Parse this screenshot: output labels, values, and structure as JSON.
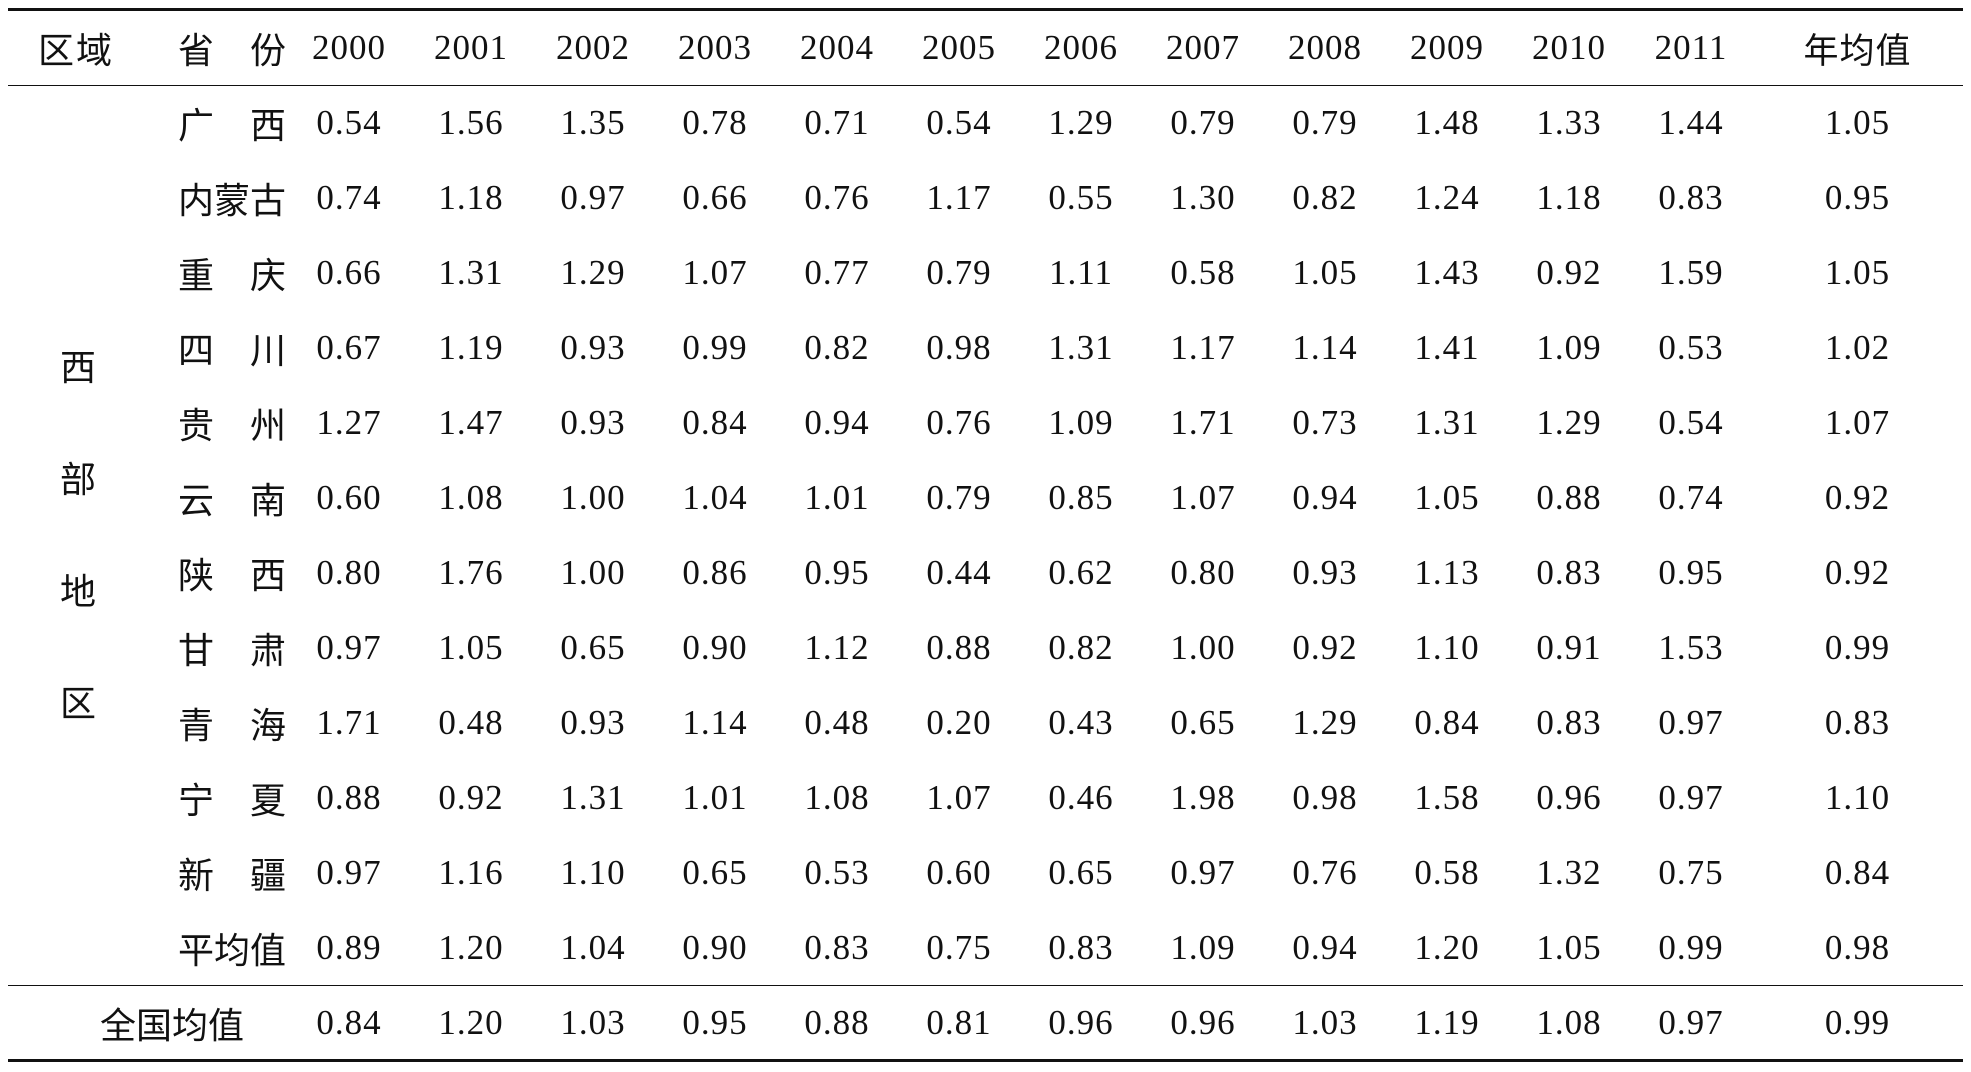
{
  "header": {
    "region": "区域",
    "province_a": "省",
    "province_b": "份",
    "years": [
      "2000",
      "2001",
      "2002",
      "2003",
      "2004",
      "2005",
      "2006",
      "2007",
      "2008",
      "2009",
      "2010",
      "2011"
    ],
    "annual_mean": "年均值"
  },
  "region_label": [
    "西",
    "部",
    "地",
    "区"
  ],
  "rows": [
    {
      "p1": "广",
      "p2": "西",
      "values": [
        "0.54",
        "1.56",
        "1.35",
        "0.78",
        "0.71",
        "0.54",
        "1.29",
        "0.79",
        "0.79",
        "1.48",
        "1.33",
        "1.44"
      ],
      "mean": "1.05"
    },
    {
      "p1": "内蒙古",
      "p2": "",
      "values": [
        "0.74",
        "1.18",
        "0.97",
        "0.66",
        "0.76",
        "1.17",
        "0.55",
        "1.30",
        "0.82",
        "1.24",
        "1.18",
        "0.83"
      ],
      "mean": "0.95"
    },
    {
      "p1": "重",
      "p2": "庆",
      "values": [
        "0.66",
        "1.31",
        "1.29",
        "1.07",
        "0.77",
        "0.79",
        "1.11",
        "0.58",
        "1.05",
        "1.43",
        "0.92",
        "1.59"
      ],
      "mean": "1.05"
    },
    {
      "p1": "四",
      "p2": "川",
      "values": [
        "0.67",
        "1.19",
        "0.93",
        "0.99",
        "0.82",
        "0.98",
        "1.31",
        "1.17",
        "1.14",
        "1.41",
        "1.09",
        "0.53"
      ],
      "mean": "1.02"
    },
    {
      "p1": "贵",
      "p2": "州",
      "values": [
        "1.27",
        "1.47",
        "0.93",
        "0.84",
        "0.94",
        "0.76",
        "1.09",
        "1.71",
        "0.73",
        "1.31",
        "1.29",
        "0.54"
      ],
      "mean": "1.07"
    },
    {
      "p1": "云",
      "p2": "南",
      "values": [
        "0.60",
        "1.08",
        "1.00",
        "1.04",
        "1.01",
        "0.79",
        "0.85",
        "1.07",
        "0.94",
        "1.05",
        "0.88",
        "0.74"
      ],
      "mean": "0.92"
    },
    {
      "p1": "陕",
      "p2": "西",
      "values": [
        "0.80",
        "1.76",
        "1.00",
        "0.86",
        "0.95",
        "0.44",
        "0.62",
        "0.80",
        "0.93",
        "1.13",
        "0.83",
        "0.95"
      ],
      "mean": "0.92"
    },
    {
      "p1": "甘",
      "p2": "肃",
      "values": [
        "0.97",
        "1.05",
        "0.65",
        "0.90",
        "1.12",
        "0.88",
        "0.82",
        "1.00",
        "0.92",
        "1.10",
        "0.91",
        "1.53"
      ],
      "mean": "0.99"
    },
    {
      "p1": "青",
      "p2": "海",
      "values": [
        "1.71",
        "0.48",
        "0.93",
        "1.14",
        "0.48",
        "0.20",
        "0.43",
        "0.65",
        "1.29",
        "0.84",
        "0.83",
        "0.97"
      ],
      "mean": "0.83"
    },
    {
      "p1": "宁",
      "p2": "夏",
      "values": [
        "0.88",
        "0.92",
        "1.31",
        "1.01",
        "1.08",
        "1.07",
        "0.46",
        "1.98",
        "0.98",
        "1.58",
        "0.96",
        "0.97"
      ],
      "mean": "1.10"
    },
    {
      "p1": "新",
      "p2": "疆",
      "values": [
        "0.97",
        "1.16",
        "1.10",
        "0.65",
        "0.53",
        "0.60",
        "0.65",
        "0.97",
        "0.76",
        "0.58",
        "1.32",
        "0.75"
      ],
      "mean": "0.84"
    },
    {
      "p1": "平均值",
      "p2": "",
      "values": [
        "0.89",
        "1.20",
        "1.04",
        "0.90",
        "0.83",
        "0.75",
        "0.83",
        "1.09",
        "0.94",
        "1.20",
        "1.05",
        "0.99"
      ],
      "mean": "0.98"
    }
  ],
  "national": {
    "label": "全国均值",
    "values": [
      "0.84",
      "1.20",
      "1.03",
      "0.95",
      "0.88",
      "0.81",
      "0.96",
      "0.96",
      "1.03",
      "1.19",
      "1.08",
      "0.97"
    ],
    "mean": "0.99"
  }
}
